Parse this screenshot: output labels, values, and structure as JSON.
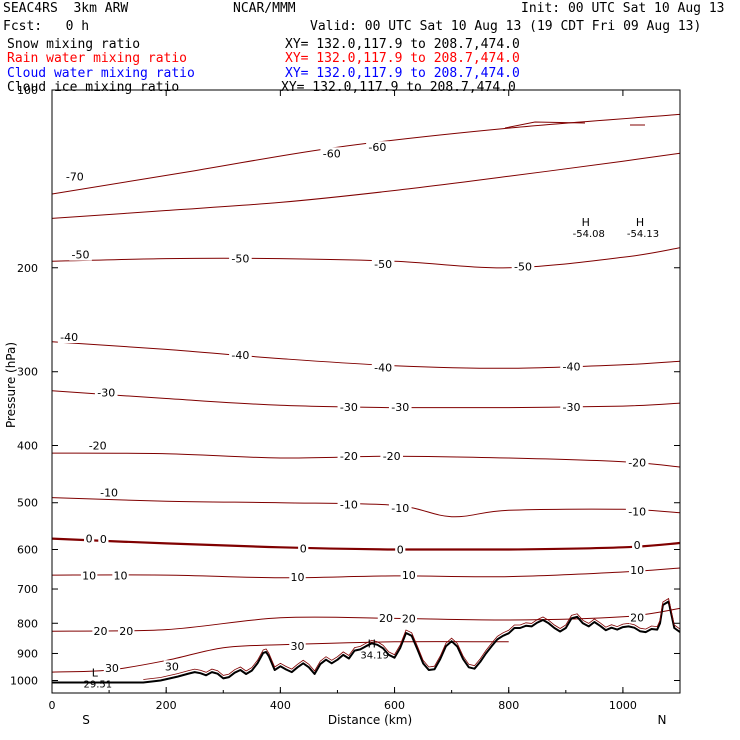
{
  "header": {
    "model": "SEAC4RS  3km ARW",
    "org": "NCAR/MMM",
    "init": "Init: 00 UTC Sat 10 Aug 13",
    "fcst": "Fcst:   0 h",
    "valid": "Valid: 00 UTC Sat 10 Aug 13 (19 CDT Fri 09 Aug 13)",
    "fields": [
      {
        "label": "Snow mixing ratio",
        "xy": "XY= 132.0,117.9 to 208.7,474.0",
        "color": "#000000"
      },
      {
        "label": "Rain water mixing ratio",
        "xy": "XY= 132.0,117.9 to 208.7,474.0",
        "color": "#ff0000"
      },
      {
        "label": "Cloud water mixing ratio",
        "xy": "XY= 132.0,117.9 to 208.7,474.0",
        "color": "#0000ff"
      },
      {
        "label": "Cloud ice mixing ratio",
        "xy": "XY= 132.0,117.9 to 208.7,474.0",
        "color": "#000000"
      }
    ]
  },
  "colors": {
    "isotherm": "#800000",
    "terrain": "#000000",
    "axis": "#000000"
  },
  "chart_data": {
    "type": "line",
    "xlabel": "Distance (km)",
    "ylabel": "Pressure (hPa)",
    "xlim": [
      0,
      1100
    ],
    "ylim": [
      1050,
      100
    ],
    "y_scale": "log",
    "xticks": [
      0,
      200,
      400,
      600,
      800,
      1000
    ],
    "xtick_labels": [
      "0",
      "200",
      "400",
      "600",
      "800",
      "1000"
    ],
    "yticks": [
      200,
      300,
      400,
      500,
      600,
      700,
      800,
      900,
      1000
    ],
    "ytick_labels": [
      "200",
      "300",
      "400",
      "500",
      "600",
      "700",
      "800",
      "900",
      "1000"
    ],
    "end_labels": {
      "left": "S",
      "right": "N"
    },
    "clipped_top_label": "100",
    "contours": [
      {
        "value": -70,
        "x": [
          0,
          250,
          500,
          800,
          1100
        ],
        "y": [
          150,
          137,
          125,
          116,
          110
        ]
      },
      {
        "value": -60,
        "x": [
          0,
          200,
          400,
          600,
          800,
          1000,
          1100
        ],
        "y": [
          165,
          160,
          155,
          148,
          140,
          132,
          128
        ]
      },
      {
        "value": -50,
        "x": [
          0,
          200,
          400,
          600,
          800,
          1000,
          1100
        ],
        "y": [
          195,
          193,
          193,
          195,
          200,
          192,
          185
        ]
      },
      {
        "value": -40,
        "x": [
          0,
          200,
          400,
          600,
          800,
          1000,
          1100
        ],
        "y": [
          267,
          275,
          285,
          293,
          296,
          292,
          288
        ]
      },
      {
        "value": -30,
        "x": [
          0,
          200,
          400,
          600,
          800,
          1000,
          1100
        ],
        "y": [
          323,
          333,
          342,
          345,
          345,
          343,
          339
        ]
      },
      {
        "value": -20,
        "x": [
          0,
          200,
          400,
          600,
          800,
          1000,
          1100
        ],
        "y": [
          412,
          413,
          420,
          417,
          420,
          426,
          435
        ]
      },
      {
        "value": -10,
        "x": [
          0,
          200,
          400,
          600,
          700,
          800,
          1000,
          1100
        ],
        "y": [
          490,
          497,
          500,
          505,
          528,
          515,
          513,
          520
        ]
      },
      {
        "value": 0,
        "x": [
          0,
          200,
          400,
          600,
          800,
          1000,
          1100
        ],
        "y": [
          575,
          586,
          595,
          600,
          600,
          595,
          585
        ],
        "bold": true
      },
      {
        "value": 10,
        "x": [
          0,
          200,
          400,
          600,
          800,
          1000,
          1100
        ],
        "y": [
          663,
          663,
          670,
          665,
          667,
          655,
          645
        ]
      },
      {
        "value": 20,
        "x": [
          0,
          200,
          400,
          600,
          800,
          1000,
          1100
        ],
        "y": [
          825,
          820,
          783,
          785,
          790,
          780,
          755
        ]
      },
      {
        "value": 30,
        "x": [
          0,
          100,
          200,
          300,
          400,
          600,
          800
        ],
        "y": [
          968,
          960,
          925,
          880,
          870,
          860,
          860
        ]
      }
    ],
    "contour_labels": [
      {
        "text": "-70",
        "x": 40,
        "p": 140
      },
      {
        "text": "-60",
        "x": 490,
        "p": 128
      },
      {
        "text": "-60",
        "x": 570,
        "p": 125
      },
      {
        "text": "-50",
        "x": 50,
        "p": 190
      },
      {
        "text": "-50",
        "x": 330,
        "p": 193
      },
      {
        "text": "-50",
        "x": 580,
        "p": 197
      },
      {
        "text": "-50",
        "x": 825,
        "p": 199
      },
      {
        "text": "-40",
        "x": 30,
        "p": 262
      },
      {
        "text": "-40",
        "x": 330,
        "p": 281
      },
      {
        "text": "-40",
        "x": 580,
        "p": 295
      },
      {
        "text": "-40",
        "x": 910,
        "p": 294
      },
      {
        "text": "-30",
        "x": 95,
        "p": 325
      },
      {
        "text": "-30",
        "x": 520,
        "p": 344
      },
      {
        "text": "-30",
        "x": 610,
        "p": 344
      },
      {
        "text": "-30",
        "x": 910,
        "p": 344
      },
      {
        "text": "-20",
        "x": 80,
        "p": 400
      },
      {
        "text": "-20",
        "x": 520,
        "p": 417
      },
      {
        "text": "-20",
        "x": 595,
        "p": 417
      },
      {
        "text": "-20",
        "x": 1025,
        "p": 427
      },
      {
        "text": "-10",
        "x": 100,
        "p": 480
      },
      {
        "text": "-10",
        "x": 520,
        "p": 503
      },
      {
        "text": "-10",
        "x": 610,
        "p": 510
      },
      {
        "text": "-10",
        "x": 1025,
        "p": 517
      },
      {
        "text": "0",
        "x": 65,
        "p": 575
      },
      {
        "text": "0",
        "x": 90,
        "p": 576
      },
      {
        "text": "0",
        "x": 440,
        "p": 598
      },
      {
        "text": "0",
        "x": 610,
        "p": 600
      },
      {
        "text": "0",
        "x": 1025,
        "p": 590
      },
      {
        "text": "10",
        "x": 65,
        "p": 664
      },
      {
        "text": "10",
        "x": 120,
        "p": 664
      },
      {
        "text": "10",
        "x": 430,
        "p": 668
      },
      {
        "text": "10",
        "x": 625,
        "p": 663
      },
      {
        "text": "10",
        "x": 1025,
        "p": 650
      },
      {
        "text": "20",
        "x": 85,
        "p": 824
      },
      {
        "text": "20",
        "x": 130,
        "p": 824
      },
      {
        "text": "20",
        "x": 585,
        "p": 784
      },
      {
        "text": "20",
        "x": 625,
        "p": 785
      },
      {
        "text": "20",
        "x": 1025,
        "p": 782
      },
      {
        "text": "30",
        "x": 430,
        "p": 874
      },
      {
        "text": "30",
        "x": 105,
        "p": 953
      },
      {
        "text": "30",
        "x": 210,
        "p": 946
      }
    ],
    "extrema": [
      {
        "symbol": "H",
        "value": "-54.08",
        "x": 935,
        "p": 170
      },
      {
        "symbol": "H",
        "value": "-54.13",
        "x": 1030,
        "p": 170
      },
      {
        "symbol": "H",
        "value": "34.19",
        "x": 560,
        "p": 880
      },
      {
        "symbol": "L",
        "value": "29.51",
        "x": 75,
        "p": 985
      }
    ],
    "terrain": {
      "x": [
        0,
        50,
        100,
        160,
        190,
        220,
        240,
        250,
        260,
        270,
        280,
        290,
        300,
        310,
        320,
        330,
        340,
        350,
        360,
        370,
        375,
        380,
        390,
        400,
        410,
        420,
        430,
        440,
        450,
        460,
        470,
        480,
        490,
        500,
        510,
        520,
        530,
        540,
        550,
        560,
        570,
        580,
        590,
        600,
        610,
        620,
        630,
        640,
        650,
        660,
        670,
        680,
        690,
        700,
        710,
        720,
        730,
        740,
        750,
        760,
        770,
        780,
        790,
        800,
        810,
        820,
        830,
        840,
        850,
        860,
        870,
        880,
        890,
        900,
        910,
        920,
        930,
        940,
        950,
        960,
        970,
        980,
        990,
        1000,
        1010,
        1020,
        1030,
        1040,
        1050,
        1060,
        1065,
        1070,
        1080,
        1090,
        1100
      ],
      "p": [
        1008,
        1008,
        1008,
        1008,
        1000,
        985,
        973,
        968,
        972,
        980,
        968,
        974,
        992,
        987,
        970,
        960,
        975,
        962,
        935,
        898,
        895,
        910,
        960,
        946,
        958,
        968,
        950,
        935,
        950,
        975,
        938,
        922,
        935,
        922,
        905,
        918,
        890,
        886,
        875,
        865,
        870,
        882,
        905,
        915,
        880,
        831,
        840,
        885,
        935,
        960,
        957,
        920,
        875,
        858,
        876,
        920,
        950,
        955,
        930,
        900,
        875,
        852,
        840,
        832,
        815,
        815,
        808,
        810,
        798,
        790,
        800,
        815,
        826,
        815,
        785,
        780,
        800,
        810,
        796,
        808,
        822,
        814,
        820,
        812,
        810,
        814,
        825,
        828,
        818,
        820,
        800,
        745,
        735,
        815,
        828
      ]
    }
  }
}
